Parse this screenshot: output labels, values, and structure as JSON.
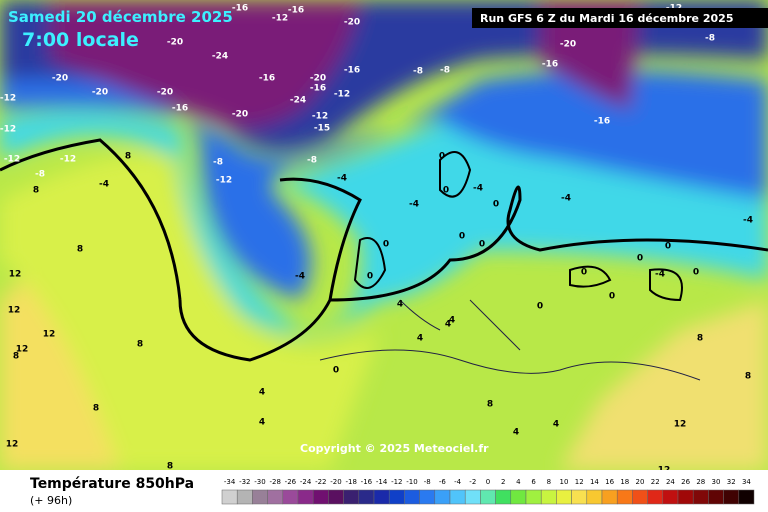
{
  "header": {
    "date": "Samedi 20 décembre 2025",
    "time": "7:00 locale",
    "run": "Run GFS 6 Z du Mardi 16 décembre 2025"
  },
  "map": {
    "contour_labels": [
      -16,
      -16,
      -12,
      -20,
      -20,
      -24,
      -16,
      -20,
      -20,
      -20,
      -16,
      -12,
      -20,
      -24,
      -16,
      -20,
      -12,
      -12,
      -15,
      -16,
      -8,
      -8,
      -20,
      -16,
      -16,
      -12,
      -8,
      -8,
      -12,
      -8,
      -12,
      -8,
      -4,
      -12,
      -12,
      -8,
      8,
      8,
      -4,
      8,
      12,
      12,
      12,
      8,
      12,
      0,
      0,
      0,
      -4,
      0,
      0,
      0,
      0,
      -4,
      -4,
      0,
      0,
      0,
      0,
      4,
      4,
      4,
      0,
      4,
      8,
      8,
      8,
      8,
      12,
      12,
      12,
      4,
      4,
      8,
      8,
      -4,
      -4,
      0,
      -4,
      0,
      4,
      4
    ],
    "copyright": "Copyright © 2025 Meteociel.fr"
  },
  "footer": {
    "title": "Température 850hPa",
    "lead": "(+ 96h)",
    "scale": {
      "ticks": [
        -34,
        -32,
        -30,
        -28,
        -26,
        -24,
        -22,
        -20,
        -18,
        -16,
        -14,
        -12,
        -10,
        -8,
        -6,
        -4,
        -2,
        0,
        2,
        4,
        6,
        8,
        10,
        12,
        14,
        16,
        18,
        20,
        22,
        24,
        26,
        28,
        30,
        32,
        34
      ],
      "colors": [
        "#d0d0d0",
        "#b4b4b4",
        "#988098",
        "#a070a0",
        "#9a4a9a",
        "#8a2a8a",
        "#701070",
        "#5a1060",
        "#3a2070",
        "#2a2a8a",
        "#1a2aaa",
        "#1040c8",
        "#1c5ce0",
        "#2a7af0",
        "#3aa0f8",
        "#50c4fa",
        "#70e0f8",
        "#60e8b0",
        "#40e060",
        "#70e840",
        "#a0f040",
        "#c8f440",
        "#e8f040",
        "#f8e050",
        "#f8c830",
        "#f8a020",
        "#f87818",
        "#f05018",
        "#e02818",
        "#c01010",
        "#a00808",
        "#800808",
        "#600404",
        "#400202",
        "#100000"
      ]
    }
  }
}
